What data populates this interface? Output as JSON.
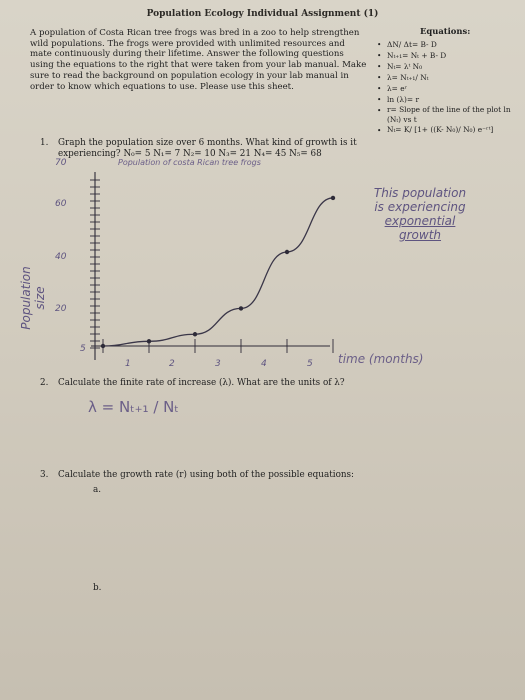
{
  "title": "Population Ecology Individual Assignment (1)",
  "intro": "A population of Costa Rican tree frogs was bred in a zoo to help strengthen wild populations. The frogs were provided with unlimited resources and mate continuously during their lifetime. Answer the following questions using the equations to the right that were taken from your lab manual. Make sure to read the background on population ecology in your lab manual in order to know which equations to use. Please use this sheet.",
  "equations": {
    "heading": "Equations:",
    "items": [
      "ΔN/ Δt= B- D",
      "Nₜ₊₁= Nₜ + B- D",
      "Nₜ= λᵗ N₀",
      "λ= Nₜ₊₁/ Nₜ",
      "λ= eʳ",
      "ln (λ)= r",
      "r= Slope of the line of the plot ln (Nₜ) vs t",
      "Nₜ= K/ [1+ ((K- N₀)/ N₀) e⁻ʳᵗ]"
    ]
  },
  "questions": {
    "q1_number": "1.",
    "q1_text": "Graph the population size over 6 months. What kind of growth is it experiencing? N₀= 5  N₁= 7  N₂= 10  N₃= 21  N₄= 45  N₅= 68",
    "q2_number": "2.",
    "q2_text": "Calculate the finite rate of increase (λ). What are the units of λ?",
    "q3_number": "3.",
    "q3_text": "Calculate the growth rate (r) using both of the possible equations:",
    "q3_a": "a.",
    "q3_b": "b."
  },
  "handwriting": {
    "graph_title": "Population of costa Rican tree frogs",
    "y_axis_label": "Population size",
    "x_axis_label": "time (months)",
    "note_line1": "This population",
    "note_line2": "is experiencing",
    "note_line3": "exponential",
    "note_line4": "growth",
    "answer_q2": "λ = Nₜ₊₁ / Nₜ"
  },
  "chart_data": {
    "type": "line",
    "x": [
      0,
      1,
      2,
      3,
      4,
      5
    ],
    "values": [
      5,
      7,
      10,
      21,
      45,
      68
    ],
    "xticks": [
      "1",
      "2",
      "3",
      "4",
      "5"
    ],
    "yticks": [
      "5",
      "20",
      "40",
      "60",
      "70"
    ],
    "xlabel": "time (months)",
    "ylabel": "Population size",
    "title": "Population of costa Rican tree frogs",
    "grid": false
  },
  "colors": {
    "ink": "#222222",
    "pencil": "#5e5480",
    "paper": "#d6d0c4"
  }
}
